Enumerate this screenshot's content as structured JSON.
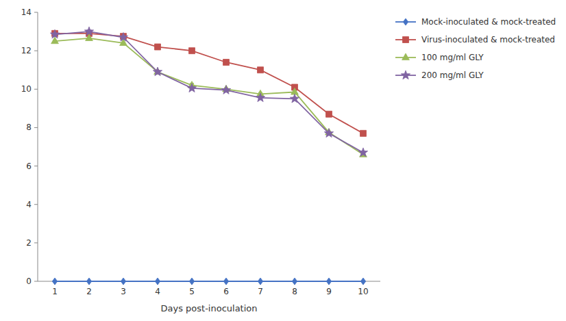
{
  "chart_data": {
    "type": "line",
    "xlabel": "Days post-inoculation",
    "x": [
      1,
      2,
      3,
      4,
      5,
      6,
      7,
      8,
      9,
      10
    ],
    "series": [
      {
        "name": "Mock-inoculated & mock-treated",
        "color": "#4472C4",
        "marker": "diamond",
        "values": [
          0.0,
          0.0,
          0.0,
          0.0,
          0.0,
          0.0,
          0.0,
          0.0,
          0.0,
          0.0
        ],
        "errors": [
          0.0,
          0.0,
          0.0,
          0.0,
          0.0,
          0.0,
          0.0,
          0.0,
          0.0,
          0.0
        ]
      },
      {
        "name": "Virus-inoculated & mock-treated",
        "color": "#C0504D",
        "marker": "square",
        "values": [
          12.9,
          12.9,
          12.75,
          12.2,
          12.0,
          11.4,
          11.0,
          10.1,
          8.7,
          7.7
        ],
        "errors": [
          0.05,
          0.05,
          0.05,
          0.05,
          0.08,
          0.12,
          0.05,
          0.1,
          0.05,
          0.05
        ]
      },
      {
        "name": "100 mg/ml GLY",
        "color": "#9BBB59",
        "marker": "triangle",
        "values": [
          12.5,
          12.65,
          12.4,
          10.9,
          10.2,
          10.0,
          9.75,
          9.85,
          7.75,
          6.6
        ],
        "errors": [
          0.05,
          0.05,
          0.05,
          0.07,
          0.1,
          0.07,
          0.07,
          0.07,
          0.05,
          0.05
        ]
      },
      {
        "name": "200 mg/ml GLY",
        "color": "#8064A2",
        "marker": "star",
        "values": [
          12.85,
          13.0,
          12.7,
          10.9,
          10.05,
          9.95,
          9.55,
          9.5,
          7.7,
          6.7
        ],
        "errors": [
          0.05,
          0.07,
          0.05,
          0.07,
          0.07,
          0.07,
          0.08,
          0.07,
          0.05,
          0.05
        ]
      }
    ],
    "xlim": [
      0.5,
      10.5
    ],
    "xticks": [
      1,
      2,
      3,
      4,
      5,
      6,
      7,
      8,
      9,
      10
    ],
    "ylim": [
      0,
      14
    ],
    "yticks": [
      0,
      2,
      4,
      6,
      8,
      10,
      12,
      14
    ],
    "grid": false,
    "legend": "right"
  }
}
